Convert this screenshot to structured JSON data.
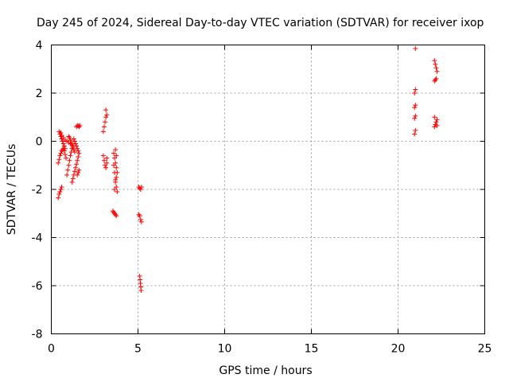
{
  "chart_data": {
    "type": "scatter",
    "title": "Day 245 of 2024, Sidereal Day-to-day VTEC variation (SDTVAR) for receiver ixop",
    "xlabel": "GPS time / hours",
    "ylabel": "SDTVAR / TECUs",
    "xlim": [
      0,
      25
    ],
    "ylim": [
      -8,
      4
    ],
    "xticks": [
      0,
      5,
      10,
      15,
      20,
      25
    ],
    "yticks": [
      -8,
      -6,
      -4,
      -2,
      0,
      2,
      4
    ],
    "grid": true,
    "marker": "plus",
    "color": "#ff0000",
    "series": [
      {
        "name": "SDTVAR",
        "points": [
          [
            0.4,
            -2.35
          ],
          [
            0.45,
            -2.2
          ],
          [
            0.5,
            -2.1
          ],
          [
            0.55,
            -2.0
          ],
          [
            0.6,
            -1.9
          ],
          [
            0.4,
            -0.9
          ],
          [
            0.45,
            -0.75
          ],
          [
            0.5,
            -0.6
          ],
          [
            0.55,
            -0.5
          ],
          [
            0.6,
            -0.4
          ],
          [
            0.65,
            -0.35
          ],
          [
            0.7,
            -0.3
          ],
          [
            0.75,
            -0.4
          ],
          [
            0.8,
            -0.55
          ],
          [
            0.85,
            -0.7
          ],
          [
            0.45,
            0.4
          ],
          [
            0.5,
            0.3
          ],
          [
            0.55,
            0.2
          ],
          [
            0.6,
            0.1
          ],
          [
            0.65,
            0.0
          ],
          [
            0.7,
            -0.1
          ],
          [
            0.75,
            -0.2
          ],
          [
            0.8,
            -0.3
          ],
          [
            0.55,
            0.35
          ],
          [
            0.6,
            0.25
          ],
          [
            0.7,
            0.15
          ],
          [
            0.8,
            0.05
          ],
          [
            0.9,
            0.0
          ],
          [
            1.0,
            -0.05
          ],
          [
            1.1,
            -0.1
          ],
          [
            1.2,
            -0.15
          ],
          [
            0.9,
            -1.4
          ],
          [
            0.95,
            -1.2
          ],
          [
            1.0,
            -1.0
          ],
          [
            1.05,
            -0.8
          ],
          [
            1.1,
            -0.6
          ],
          [
            1.15,
            -0.45
          ],
          [
            1.2,
            -0.3
          ],
          [
            1.25,
            -0.2
          ],
          [
            1.0,
            0.2
          ],
          [
            1.05,
            0.15
          ],
          [
            1.1,
            0.05
          ],
          [
            1.15,
            -0.05
          ],
          [
            1.2,
            -0.15
          ],
          [
            1.25,
            -0.25
          ],
          [
            1.3,
            -0.35
          ],
          [
            1.35,
            -0.45
          ],
          [
            1.2,
            -1.7
          ],
          [
            1.25,
            -1.55
          ],
          [
            1.3,
            -1.4
          ],
          [
            1.35,
            -1.25
          ],
          [
            1.4,
            -1.1
          ],
          [
            1.45,
            -0.95
          ],
          [
            1.5,
            -0.8
          ],
          [
            1.55,
            -0.65
          ],
          [
            1.3,
            0.1
          ],
          [
            1.35,
            0.0
          ],
          [
            1.4,
            -0.1
          ],
          [
            1.45,
            -0.2
          ],
          [
            1.5,
            -0.3
          ],
          [
            1.55,
            -0.4
          ],
          [
            1.6,
            -0.5
          ],
          [
            1.5,
            -1.4
          ],
          [
            1.55,
            -1.3
          ],
          [
            1.6,
            -1.2
          ],
          [
            1.45,
            0.6
          ],
          [
            1.5,
            0.65
          ],
          [
            1.55,
            0.65
          ],
          [
            1.6,
            0.6
          ],
          [
            1.65,
            0.65
          ],
          [
            3.0,
            0.4
          ],
          [
            3.05,
            0.6
          ],
          [
            3.1,
            0.8
          ],
          [
            3.15,
            1.0
          ],
          [
            3.2,
            1.1
          ],
          [
            3.15,
            1.3
          ],
          [
            3.0,
            -0.6
          ],
          [
            3.05,
            -0.8
          ],
          [
            3.1,
            -1.0
          ],
          [
            3.15,
            -1.1
          ],
          [
            3.2,
            -0.9
          ],
          [
            3.2,
            -0.7
          ],
          [
            3.6,
            -0.5
          ],
          [
            3.65,
            -0.7
          ],
          [
            3.7,
            -0.9
          ],
          [
            3.75,
            -1.1
          ],
          [
            3.8,
            -1.3
          ],
          [
            3.75,
            -1.5
          ],
          [
            3.7,
            -1.7
          ],
          [
            3.75,
            -1.9
          ],
          [
            3.8,
            -2.1
          ],
          [
            3.6,
            -1.0
          ],
          [
            3.65,
            -1.3
          ],
          [
            3.7,
            -1.6
          ],
          [
            3.65,
            -2.0
          ],
          [
            3.7,
            -0.35
          ],
          [
            3.75,
            -0.6
          ],
          [
            3.55,
            -2.9
          ],
          [
            3.6,
            -2.95
          ],
          [
            3.65,
            -3.0
          ],
          [
            3.7,
            -3.05
          ],
          [
            3.75,
            -3.1
          ],
          [
            5.05,
            -1.9
          ],
          [
            5.1,
            -1.95
          ],
          [
            5.15,
            -2.0
          ],
          [
            5.2,
            -1.9
          ],
          [
            5.05,
            -3.05
          ],
          [
            5.1,
            -3.1
          ],
          [
            5.15,
            -3.25
          ],
          [
            5.2,
            -3.35
          ],
          [
            5.1,
            -5.6
          ],
          [
            5.12,
            -5.75
          ],
          [
            5.14,
            -5.9
          ],
          [
            5.16,
            -6.05
          ],
          [
            5.18,
            -6.2
          ],
          [
            21.0,
            3.85
          ],
          [
            20.95,
            2.0
          ],
          [
            21.0,
            2.15
          ],
          [
            20.95,
            1.4
          ],
          [
            21.0,
            1.5
          ],
          [
            20.95,
            0.95
          ],
          [
            21.0,
            1.05
          ],
          [
            20.95,
            0.3
          ],
          [
            21.0,
            0.45
          ],
          [
            22.1,
            3.35
          ],
          [
            22.15,
            3.2
          ],
          [
            22.2,
            3.05
          ],
          [
            22.25,
            2.9
          ],
          [
            22.1,
            2.5
          ],
          [
            22.15,
            2.55
          ],
          [
            22.2,
            2.6
          ],
          [
            22.1,
            0.6
          ],
          [
            22.15,
            0.7
          ],
          [
            22.2,
            0.8
          ],
          [
            22.25,
            0.9
          ],
          [
            22.1,
            1.0
          ],
          [
            22.25,
            0.65
          ]
        ]
      }
    ]
  }
}
